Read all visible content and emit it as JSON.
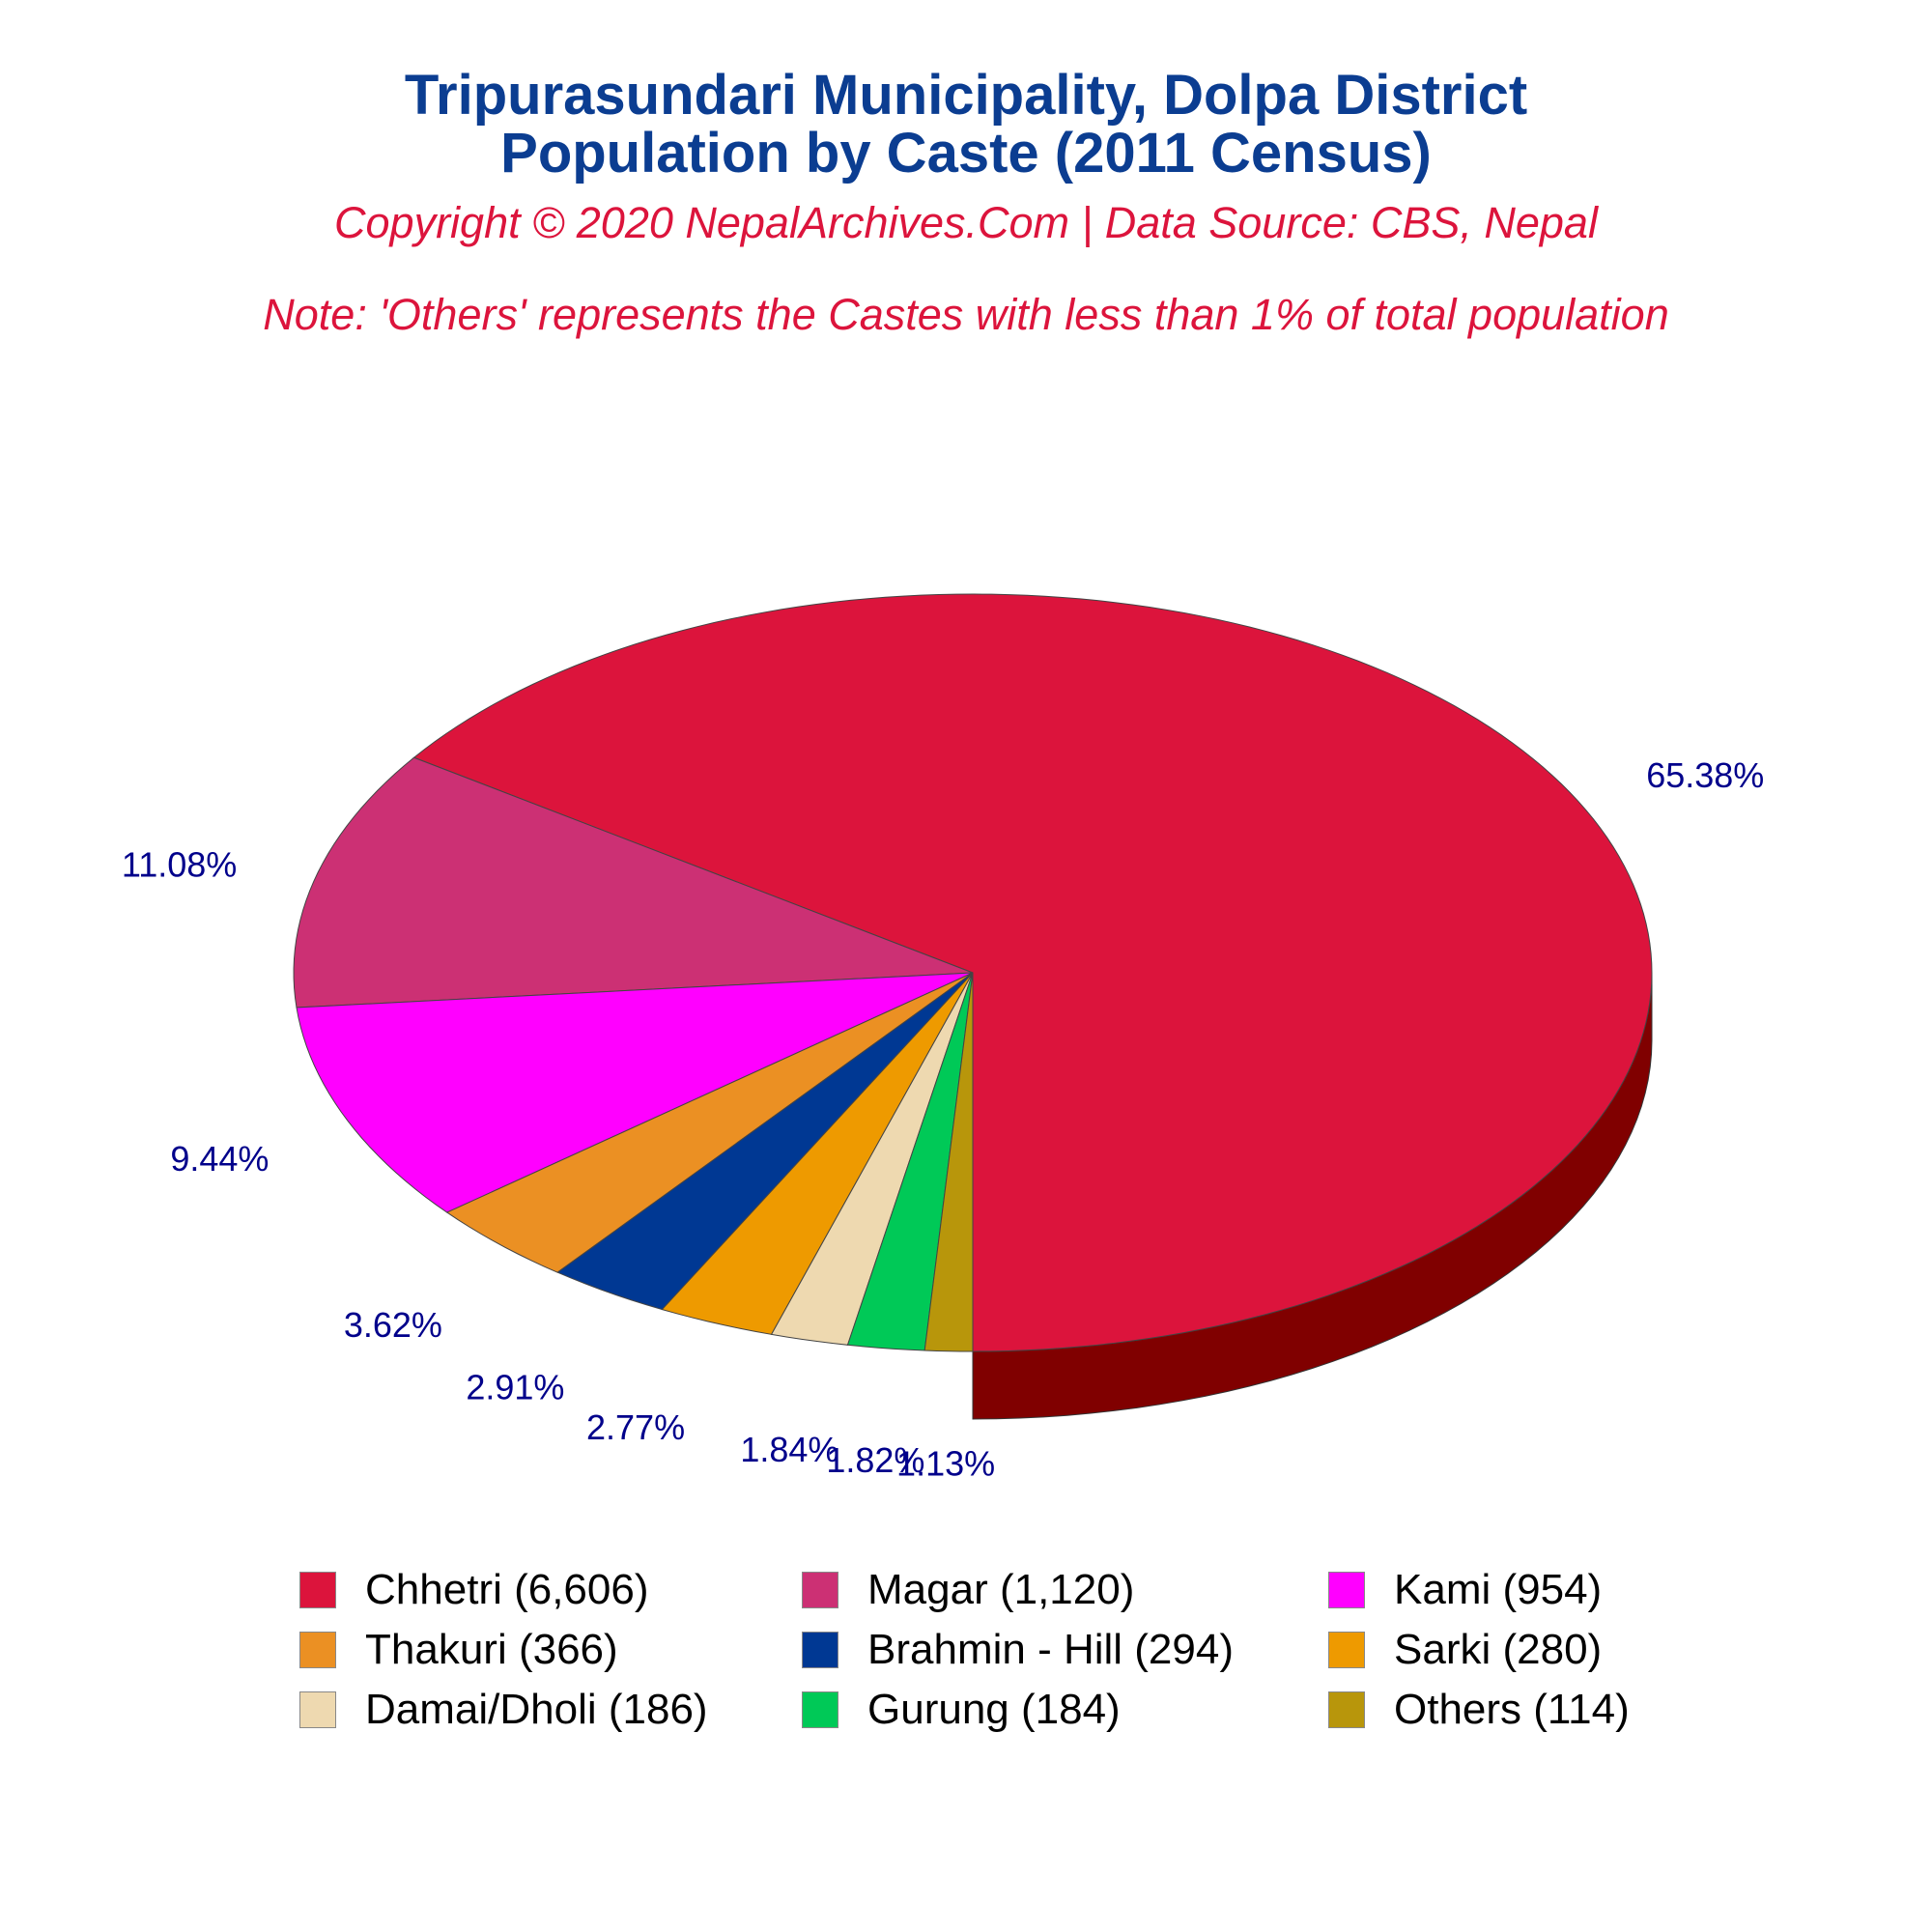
{
  "title_line1": "Tripurasundari Municipality, Dolpa District",
  "title_line2": "Population by Caste (2011 Census)",
  "copyright": "Copyright © 2020 NepalArchives.Com | Data Source: CBS, Nepal",
  "note": "Note: 'Others' represents the Castes with less than 1% of total population",
  "chart_data": {
    "type": "pie",
    "style": "3d",
    "legend_position": "bottom",
    "slices": [
      {
        "label": "Chhetri (6,606)",
        "value": 6606,
        "percent_label": "65.38%",
        "color": "#DC143C",
        "side_color": "#800000"
      },
      {
        "label": "Magar (1,120)",
        "value": 1120,
        "percent_label": "11.08%",
        "color": "#CC3074",
        "side_color": "#6B0020"
      },
      {
        "label": "Kami (954)",
        "value": 954,
        "percent_label": "9.44%",
        "color": "#FF00FF",
        "side_color": "#A000A8"
      },
      {
        "label": "Thakuri (366)",
        "value": 366,
        "percent_label": "3.62%",
        "color": "#EB9023",
        "side_color": "#8B3A00"
      },
      {
        "label": "Brahmin - Hill (294)",
        "value": 294,
        "percent_label": "2.91%",
        "color": "#003893",
        "side_color": "#001A50"
      },
      {
        "label": "Sarki (280)",
        "value": 280,
        "percent_label": "2.77%",
        "color": "#EE9A00",
        "side_color": "#8B5A00"
      },
      {
        "label": "Damai/Dholi (186)",
        "value": 186,
        "percent_label": "1.84%",
        "color": "#EED9B0",
        "side_color": "#A08F70"
      },
      {
        "label": "Gurung (184)",
        "value": 184,
        "percent_label": "1.82%",
        "color": "#00C957",
        "side_color": "#006A2D"
      },
      {
        "label": "Others (114)",
        "value": 114,
        "percent_label": "1.13%",
        "color": "#B8960B",
        "side_color": "#6A5606"
      }
    ]
  }
}
